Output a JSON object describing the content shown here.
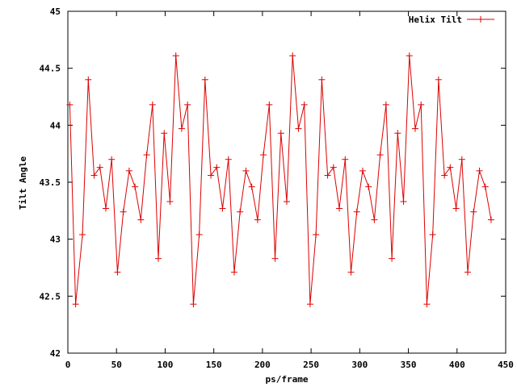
{
  "chart_data": {
    "type": "line",
    "title": "",
    "xlabel": "ps/frame",
    "ylabel": "Tilt Angle",
    "xlim": [
      0,
      450
    ],
    "ylim": [
      42,
      45
    ],
    "xticks": [
      0,
      50,
      100,
      150,
      200,
      250,
      300,
      350,
      400,
      450
    ],
    "yticks": [
      42,
      42.5,
      43,
      43.5,
      44,
      44.5,
      45
    ],
    "ytick_labels": [
      "42",
      "42.5",
      "43",
      "43.5",
      "44",
      "44.5",
      "45"
    ],
    "grid": false,
    "legend": "top-right",
    "series": [
      {
        "name": "Helix Tilt",
        "color": "#dd0000",
        "marker": "plus",
        "x": [
          2,
          8,
          15,
          21,
          27,
          33,
          39,
          45,
          51,
          57,
          63,
          69,
          75,
          81,
          87,
          93,
          99,
          105,
          111,
          117,
          123,
          129,
          135,
          141,
          147,
          153,
          159,
          165,
          171,
          177,
          183,
          189,
          195,
          201,
          207,
          213,
          219,
          225,
          231,
          237,
          243,
          249,
          255,
          261,
          267,
          273,
          279,
          285,
          291,
          297,
          303,
          309,
          315,
          321,
          327,
          333,
          339,
          345,
          351,
          357,
          363,
          369,
          375,
          381,
          387,
          393,
          399,
          405,
          411,
          417,
          423,
          429,
          435
        ],
        "y": [
          44.18,
          42.43,
          43.04,
          44.4,
          43.56,
          43.63,
          43.27,
          43.7,
          42.71,
          43.24,
          43.6,
          43.46,
          43.17,
          43.74,
          44.18,
          42.83,
          43.93,
          43.33,
          44.61,
          43.97,
          44.18,
          42.43,
          43.04,
          44.4,
          43.56,
          43.63,
          43.27,
          43.7,
          42.71,
          43.24,
          43.6,
          43.46,
          43.17,
          43.74,
          44.18,
          42.83,
          43.93,
          43.33,
          44.61,
          43.97,
          44.18,
          42.43,
          43.04,
          44.4,
          43.56,
          43.63,
          43.27,
          43.7,
          42.71,
          43.24,
          43.6,
          43.46,
          43.17,
          43.74,
          44.18,
          42.83,
          43.93,
          43.33,
          44.61,
          43.97,
          44.18,
          42.43,
          43.04,
          44.4,
          43.56,
          43.63,
          43.27,
          43.7,
          42.71,
          43.24,
          43.6,
          43.46,
          43.17
        ]
      }
    ]
  }
}
